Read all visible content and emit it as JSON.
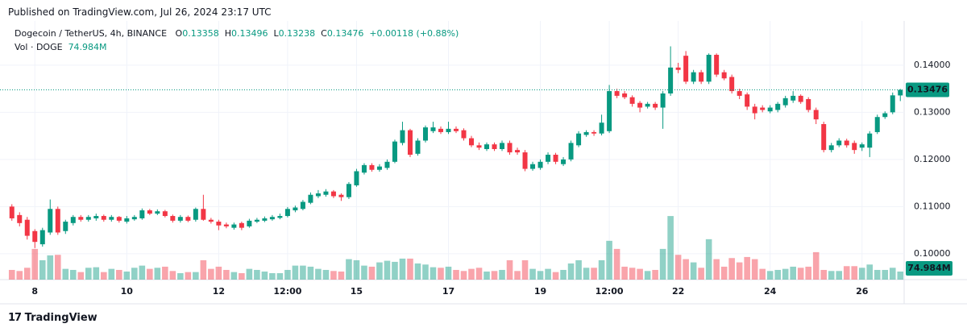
{
  "published": "Published on TradingView.com, Jul 26, 2024 23:17 UTC",
  "brand": "TradingView",
  "chart_data": {
    "type": "candlestick",
    "title": "Dogecoin / TetherUS, 4h, BINANCE",
    "ohlc_letters": [
      "O",
      "H",
      "L",
      "C"
    ],
    "change": "+0.00118 (+0.88%)",
    "volume_title": "Vol · DOGE",
    "volume_value_label": "74.984M",
    "up_color": "#089981",
    "down_color": "#f23645",
    "up_volume_color": "rgba(8,153,129,0.45)",
    "down_volume_color": "rgba(242,54,69,0.45)",
    "ylim": [
      0.0945,
      0.1487
    ],
    "yticks": [
      {
        "value": 0.14,
        "label": "0.14000"
      },
      {
        "value": 0.13,
        "label": "0.13000"
      },
      {
        "value": 0.12,
        "label": "0.12000"
      },
      {
        "value": 0.11,
        "label": "0.11000"
      },
      {
        "value": 0.1,
        "label": "0.10000"
      }
    ],
    "volume_ylim": [
      0,
      800
    ],
    "grid": true,
    "categories": [
      null,
      null,
      null,
      "8",
      null,
      null,
      null,
      null,
      null,
      null,
      null,
      null,
      null,
      null,
      null,
      "10",
      null,
      null,
      null,
      null,
      null,
      null,
      null,
      null,
      null,
      null,
      null,
      "12",
      null,
      null,
      null,
      null,
      null,
      null,
      null,
      null,
      "12:00",
      null,
      null,
      null,
      null,
      null,
      null,
      null,
      null,
      "15",
      null,
      null,
      null,
      null,
      null,
      null,
      null,
      null,
      null,
      null,
      null,
      "17",
      null,
      null,
      null,
      null,
      null,
      null,
      null,
      null,
      null,
      null,
      null,
      "19",
      null,
      null,
      null,
      null,
      null,
      null,
      null,
      null,
      "12:00",
      null,
      null,
      null,
      null,
      null,
      null,
      null,
      null,
      "22",
      null,
      null,
      null,
      null,
      null,
      null,
      null,
      null,
      null,
      null,
      null,
      "24",
      null,
      null,
      null,
      null,
      null,
      null,
      null,
      null,
      null,
      null,
      null,
      "26",
      null,
      null,
      null,
      null,
      null
    ],
    "open": [
      0.11,
      0.1082,
      0.1072,
      0.1048,
      0.102,
      0.1045,
      0.1095,
      0.1048,
      0.1065,
      0.1078,
      0.1072,
      0.1075,
      0.108,
      0.1072,
      0.1078,
      0.1068,
      0.1073,
      0.1075,
      0.1092,
      0.1085,
      0.109,
      0.108,
      0.107,
      0.1078,
      0.1072,
      0.1095,
      0.1072,
      0.1068,
      0.1062,
      0.1055,
      0.1065,
      0.1058,
      0.1068,
      0.107,
      0.1073,
      0.1076,
      0.108,
      0.1092,
      0.1095,
      0.1108,
      0.1122,
      0.1125,
      0.1132,
      0.1125,
      0.112,
      0.1145,
      0.1172,
      0.1188,
      0.1178,
      0.1182,
      0.1195,
      0.1235,
      0.1262,
      0.1212,
      0.124,
      0.126,
      0.1265,
      0.1258,
      0.1265,
      0.1262,
      0.1245,
      0.123,
      0.1222,
      0.1232,
      0.1222,
      0.1235,
      0.122,
      0.1215,
      0.118,
      0.1182,
      0.1195,
      0.121,
      0.119,
      0.12,
      0.123,
      0.1252,
      0.1258,
      0.1255,
      0.126,
      0.1345,
      0.134,
      0.1332,
      0.132,
      0.1312,
      0.1318,
      0.131,
      0.134,
      0.1395,
      0.142,
      0.1365,
      0.1385,
      0.1365,
      0.1422,
      0.1385,
      0.1375,
      0.1345,
      0.1338,
      0.1312,
      0.131,
      0.1302,
      0.1305,
      0.1315,
      0.1325,
      0.1335,
      0.1328,
      0.1305,
      0.1275,
      0.122,
      0.123,
      0.124,
      0.1235,
      0.1225,
      0.1225,
      0.1258,
      0.129,
      0.13,
      0.13358
    ],
    "high": [
      0.1105,
      0.1088,
      0.1078,
      0.1052,
      0.1055,
      0.1115,
      0.11,
      0.1072,
      0.1082,
      0.1082,
      0.1082,
      0.1085,
      0.1083,
      0.1082,
      0.108,
      0.108,
      0.1082,
      0.1096,
      0.1095,
      0.1094,
      0.1093,
      0.1083,
      0.1082,
      0.1081,
      0.1098,
      0.1125,
      0.1076,
      0.1072,
      0.1066,
      0.1066,
      0.1068,
      0.1074,
      0.1076,
      0.1079,
      0.1082,
      0.1085,
      0.1099,
      0.1102,
      0.1114,
      0.113,
      0.1135,
      0.1137,
      0.1135,
      0.1128,
      0.1152,
      0.118,
      0.1192,
      0.1192,
      0.119,
      0.12,
      0.1242,
      0.128,
      0.1265,
      0.1245,
      0.1272,
      0.128,
      0.127,
      0.128,
      0.127,
      0.1266,
      0.125,
      0.1236,
      0.1236,
      0.1236,
      0.124,
      0.124,
      0.1225,
      0.122,
      0.1195,
      0.12,
      0.1215,
      0.1214,
      0.1205,
      0.124,
      0.126,
      0.1262,
      0.1262,
      0.1295,
      0.1358,
      0.135,
      0.1345,
      0.1336,
      0.1324,
      0.1322,
      0.1322,
      0.1345,
      0.144,
      0.1405,
      0.143,
      0.139,
      0.139,
      0.1425,
      0.1425,
      0.139,
      0.138,
      0.135,
      0.1342,
      0.1318,
      0.1315,
      0.1315,
      0.1322,
      0.1335,
      0.1345,
      0.1338,
      0.1332,
      0.131,
      0.128,
      0.1235,
      0.1245,
      0.1244,
      0.124,
      0.1236,
      0.126,
      0.1295,
      0.1302,
      0.1342,
      0.13496
    ],
    "low": [
      0.107,
      0.1058,
      0.103,
      0.1012,
      0.1015,
      0.104,
      0.104,
      0.1042,
      0.106,
      0.1068,
      0.1068,
      0.107,
      0.1068,
      0.1068,
      0.1066,
      0.1064,
      0.107,
      0.1072,
      0.1082,
      0.1082,
      0.1077,
      0.1066,
      0.1066,
      0.1067,
      0.1068,
      0.107,
      0.1064,
      0.105,
      0.1054,
      0.1051,
      0.105,
      0.1055,
      0.1065,
      0.1067,
      0.107,
      0.1073,
      0.1077,
      0.1088,
      0.1092,
      0.1105,
      0.1118,
      0.1121,
      0.1118,
      0.1112,
      0.1116,
      0.1142,
      0.1168,
      0.1174,
      0.1174,
      0.1178,
      0.1192,
      0.123,
      0.1205,
      0.1208,
      0.1236,
      0.1256,
      0.1254,
      0.1254,
      0.1256,
      0.124,
      0.1226,
      0.122,
      0.1218,
      0.1218,
      0.1218,
      0.121,
      0.121,
      0.1175,
      0.1176,
      0.1178,
      0.119,
      0.119,
      0.1186,
      0.1196,
      0.1226,
      0.1248,
      0.125,
      0.1251,
      0.1256,
      0.133,
      0.1328,
      0.1312,
      0.13,
      0.1308,
      0.1305,
      0.1265,
      0.1335,
      0.1383,
      0.136,
      0.136,
      0.136,
      0.136,
      0.1375,
      0.1368,
      0.134,
      0.1328,
      0.1305,
      0.1285,
      0.13,
      0.1298,
      0.13,
      0.131,
      0.132,
      0.1318,
      0.13,
      0.1275,
      0.1215,
      0.1215,
      0.1226,
      0.1225,
      0.1212,
      0.1218,
      0.1205,
      0.1254,
      0.1286,
      0.1296,
      0.13238
    ],
    "close": [
      0.1075,
      0.1065,
      0.1038,
      0.1025,
      0.105,
      0.1095,
      0.1045,
      0.1068,
      0.1078,
      0.1072,
      0.1078,
      0.108,
      0.1072,
      0.1078,
      0.107,
      0.1075,
      0.1078,
      0.1092,
      0.1085,
      0.109,
      0.108,
      0.107,
      0.1078,
      0.107,
      0.1095,
      0.1072,
      0.1068,
      0.106,
      0.1058,
      0.1062,
      0.1055,
      0.107,
      0.1072,
      0.1075,
      0.1078,
      0.108,
      0.1095,
      0.1098,
      0.111,
      0.1125,
      0.1128,
      0.1132,
      0.1122,
      0.112,
      0.1148,
      0.1175,
      0.1188,
      0.1178,
      0.1185,
      0.1195,
      0.1238,
      0.1262,
      0.121,
      0.124,
      0.1268,
      0.1268,
      0.1258,
      0.1265,
      0.126,
      0.1245,
      0.123,
      0.1225,
      0.1232,
      0.1222,
      0.1235,
      0.1215,
      0.1215,
      0.118,
      0.119,
      0.1195,
      0.121,
      0.1195,
      0.12,
      0.1235,
      0.1255,
      0.1258,
      0.1255,
      0.1278,
      0.1345,
      0.1335,
      0.1332,
      0.1318,
      0.131,
      0.1318,
      0.131,
      0.134,
      0.1395,
      0.139,
      0.1365,
      0.1385,
      0.1365,
      0.1422,
      0.138,
      0.1372,
      0.1345,
      0.1335,
      0.1312,
      0.1298,
      0.1305,
      0.131,
      0.1318,
      0.133,
      0.1335,
      0.1322,
      0.1305,
      0.1285,
      0.122,
      0.123,
      0.124,
      0.123,
      0.122,
      0.1232,
      0.1255,
      0.129,
      0.1298,
      0.1336,
      0.13476
    ],
    "volume": [
      90,
      80,
      110,
      285,
      180,
      225,
      230,
      100,
      90,
      70,
      110,
      115,
      70,
      100,
      90,
      75,
      110,
      130,
      100,
      110,
      120,
      80,
      60,
      70,
      70,
      180,
      100,
      120,
      90,
      70,
      60,
      100,
      90,
      75,
      60,
      60,
      90,
      130,
      130,
      120,
      100,
      90,
      80,
      75,
      190,
      180,
      130,
      120,
      160,
      175,
      165,
      195,
      195,
      150,
      140,
      115,
      110,
      120,
      90,
      80,
      100,
      110,
      75,
      80,
      90,
      180,
      80,
      180,
      100,
      80,
      100,
      70,
      90,
      150,
      180,
      110,
      110,
      180,
      360,
      285,
      120,
      110,
      100,
      80,
      90,
      285,
      590,
      230,
      190,
      160,
      110,
      375,
      190,
      120,
      200,
      160,
      210,
      190,
      100,
      80,
      90,
      100,
      120,
      110,
      120,
      255,
      90,
      80,
      80,
      125,
      125,
      110,
      140,
      90,
      90,
      110,
      74.984
    ]
  }
}
